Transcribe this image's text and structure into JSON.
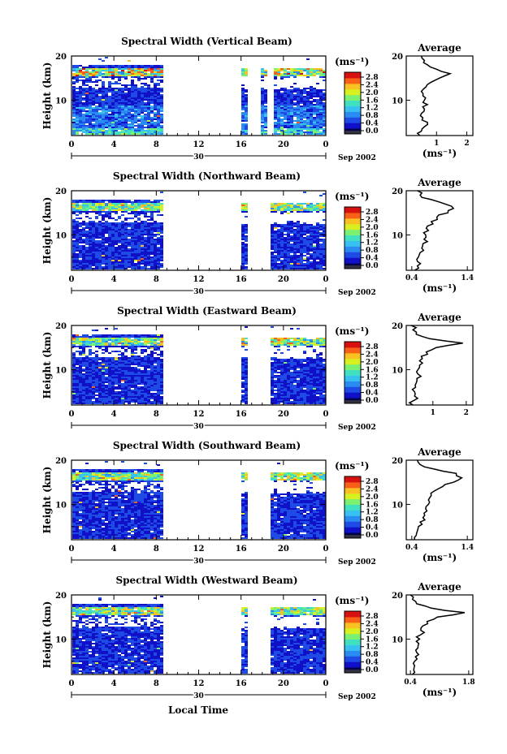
{
  "figure": {
    "x_axis_label": "Local Time",
    "date_number": "30",
    "date_suffix": "Sep 2002"
  },
  "chart_data": [
    {
      "type": "heatmap",
      "title": "Spectral Width (Vertical Beam)",
      "ylabel": "Height (km)",
      "xlabel": "Local Time",
      "xlim": [
        0,
        24
      ],
      "ylim": [
        2,
        20
      ],
      "x_ticks": [
        "0",
        "4",
        "8",
        "12",
        "16",
        "20",
        "0"
      ],
      "y_ticks": [
        "20",
        "10"
      ],
      "data_gaps_hours": [
        [
          8.5,
          16.0
        ],
        [
          16.6,
          17.8
        ],
        [
          18.4,
          18.8
        ]
      ],
      "colorbar": {
        "unit": "(ms⁻¹)",
        "ticks": [
          "2.8",
          "2.4",
          "2.0",
          "1.6",
          "1.2",
          "0.8",
          "0.4",
          "0.0"
        ],
        "range": [
          0,
          2.9
        ]
      },
      "profile": {
        "title": "Average",
        "xlabel": "(ms⁻¹)",
        "x_ticks": [
          "1",
          "2"
        ],
        "xlim": [
          0,
          2.2
        ],
        "y_ticks": [
          "20",
          "10"
        ],
        "heights": [
          2,
          3,
          4,
          5,
          6,
          7,
          8,
          9,
          10,
          11,
          12,
          13,
          14,
          15,
          16,
          17,
          18,
          19,
          20
        ],
        "values": [
          0.45,
          0.5,
          0.6,
          0.7,
          0.55,
          0.5,
          0.6,
          0.7,
          0.6,
          0.55,
          0.5,
          0.65,
          0.8,
          1.1,
          1.45,
          1.0,
          0.7,
          0.6,
          0.5
        ]
      }
    },
    {
      "type": "heatmap",
      "title": "Spectral Width (Northward Beam)",
      "ylabel": "Height (km)",
      "xlabel": "Local Time",
      "xlim": [
        0,
        24
      ],
      "ylim": [
        2,
        20
      ],
      "x_ticks": [
        "0",
        "4",
        "8",
        "12",
        "16",
        "20",
        "0"
      ],
      "y_ticks": [
        "20",
        "10"
      ],
      "data_gaps_hours": [
        [
          8.5,
          16.0
        ],
        [
          16.6,
          18.6
        ]
      ],
      "colorbar": {
        "unit": "(ms⁻¹)",
        "ticks": [
          "2.8",
          "2.4",
          "2.0",
          "1.6",
          "1.2",
          "0.8",
          "0.4",
          "0.0"
        ],
        "range": [
          0,
          2.9
        ]
      },
      "profile": {
        "title": "Average",
        "xlabel": "(ms⁻¹)",
        "x_ticks": [
          "0.4",
          "1.4"
        ],
        "xlim": [
          0.3,
          1.5
        ],
        "y_ticks": [
          "20",
          "10"
        ],
        "heights": [
          2,
          3,
          4,
          5,
          6,
          7,
          8,
          9,
          10,
          11,
          12,
          13,
          14,
          15,
          16,
          17,
          18,
          19,
          20
        ],
        "values": [
          0.45,
          0.5,
          0.5,
          0.52,
          0.55,
          0.58,
          0.6,
          0.62,
          0.65,
          0.7,
          0.68,
          0.75,
          0.85,
          1.05,
          1.15,
          1.0,
          0.75,
          0.55,
          0.5
        ]
      }
    },
    {
      "type": "heatmap",
      "title": "Spectral Width (Eastward Beam)",
      "ylabel": "Height (km)",
      "xlabel": "Local Time",
      "xlim": [
        0,
        24
      ],
      "ylim": [
        2,
        20
      ],
      "x_ticks": [
        "0",
        "4",
        "8",
        "12",
        "16",
        "20",
        "0"
      ],
      "y_ticks": [
        "20",
        "10"
      ],
      "data_gaps_hours": [
        [
          8.5,
          16.0
        ],
        [
          16.6,
          18.6
        ]
      ],
      "colorbar": {
        "unit": "(ms⁻¹)",
        "ticks": [
          "2.8",
          "2.4",
          "2.0",
          "1.6",
          "1.2",
          "0.8",
          "0.4",
          "0.0"
        ],
        "range": [
          0,
          2.9
        ]
      },
      "profile": {
        "title": "Average",
        "xlabel": "",
        "x_ticks": [
          "1",
          "2"
        ],
        "xlim": [
          0.2,
          2.2
        ],
        "y_ticks": [
          "20",
          "10"
        ],
        "heights": [
          2,
          3,
          4,
          5,
          6,
          7,
          8,
          9,
          10,
          11,
          12,
          13,
          14,
          15,
          16,
          17,
          18,
          19,
          20
        ],
        "values": [
          0.4,
          0.42,
          0.45,
          0.45,
          0.48,
          0.5,
          0.52,
          0.55,
          0.55,
          0.6,
          0.6,
          0.65,
          0.8,
          1.1,
          1.9,
          0.9,
          0.5,
          0.4,
          0.35
        ]
      }
    },
    {
      "type": "heatmap",
      "title": "Spectral Width (Southward Beam)",
      "ylabel": "Height (km)",
      "xlabel": "Local Time",
      "xlim": [
        0,
        24
      ],
      "ylim": [
        2,
        20
      ],
      "x_ticks": [
        "0",
        "4",
        "8",
        "12",
        "16",
        "20",
        "0"
      ],
      "y_ticks": [
        "20",
        "10"
      ],
      "data_gaps_hours": [
        [
          8.5,
          16.0
        ],
        [
          16.6,
          18.6
        ]
      ],
      "colorbar": {
        "unit": "(ms⁻¹)",
        "ticks": [
          "2.8",
          "2.4",
          "2.0",
          "1.6",
          "1.2",
          "0.8",
          "0.4",
          "0.0"
        ],
        "range": [
          0,
          2.9
        ]
      },
      "profile": {
        "title": "Average",
        "xlabel": "(ms⁻¹)",
        "x_ticks": [
          "0.4",
          "1.4"
        ],
        "xlim": [
          0.3,
          1.5
        ],
        "y_ticks": [
          "20",
          "10"
        ],
        "heights": [
          2,
          3,
          4,
          5,
          6,
          7,
          8,
          9,
          10,
          11,
          12,
          13,
          14,
          15,
          16,
          17,
          18,
          19,
          20
        ],
        "values": [
          0.45,
          0.48,
          0.5,
          0.52,
          0.55,
          0.6,
          0.62,
          0.65,
          0.7,
          0.7,
          0.75,
          0.8,
          0.95,
          1.15,
          1.3,
          1.2,
          0.8,
          0.55,
          0.5
        ]
      }
    },
    {
      "type": "heatmap",
      "title": "Spectral Width (Westward Beam)",
      "ylabel": "Height (km)",
      "xlabel": "Local Time",
      "xlim": [
        0,
        24
      ],
      "ylim": [
        2,
        20
      ],
      "x_ticks": [
        "0",
        "4",
        "8",
        "12",
        "16",
        "20",
        "0"
      ],
      "y_ticks": [
        "20",
        "10"
      ],
      "data_gaps_hours": [
        [
          8.5,
          16.0
        ],
        [
          16.6,
          18.6
        ]
      ],
      "colorbar": {
        "unit": "(ms⁻¹)",
        "ticks": [
          "2.8",
          "2.4",
          "2.0",
          "1.6",
          "1.2",
          "0.8",
          "0.4",
          "0.0"
        ],
        "range": [
          0,
          2.9
        ]
      },
      "profile": {
        "title": "Average",
        "xlabel": "(ms⁻¹)",
        "x_ticks": [
          "0.4",
          "1.8"
        ],
        "xlim": [
          0.3,
          1.9
        ],
        "y_ticks": [
          "20",
          "10"
        ],
        "heights": [
          2,
          3,
          4,
          5,
          6,
          7,
          8,
          9,
          10,
          11,
          12,
          13,
          14,
          15,
          16,
          17,
          18,
          19,
          20
        ],
        "values": [
          0.45,
          0.48,
          0.5,
          0.5,
          0.52,
          0.55,
          0.58,
          0.6,
          0.62,
          0.65,
          0.65,
          0.7,
          0.8,
          1.05,
          1.7,
          0.9,
          0.55,
          0.45,
          0.4
        ]
      }
    }
  ],
  "colors": {
    "scale": [
      "#00004a",
      "#1010c8",
      "#1e4ae6",
      "#2a8cf0",
      "#38c0f0",
      "#40e0c0",
      "#7cf070",
      "#d8f020",
      "#f8c020",
      "#f86018",
      "#d81010"
    ]
  }
}
